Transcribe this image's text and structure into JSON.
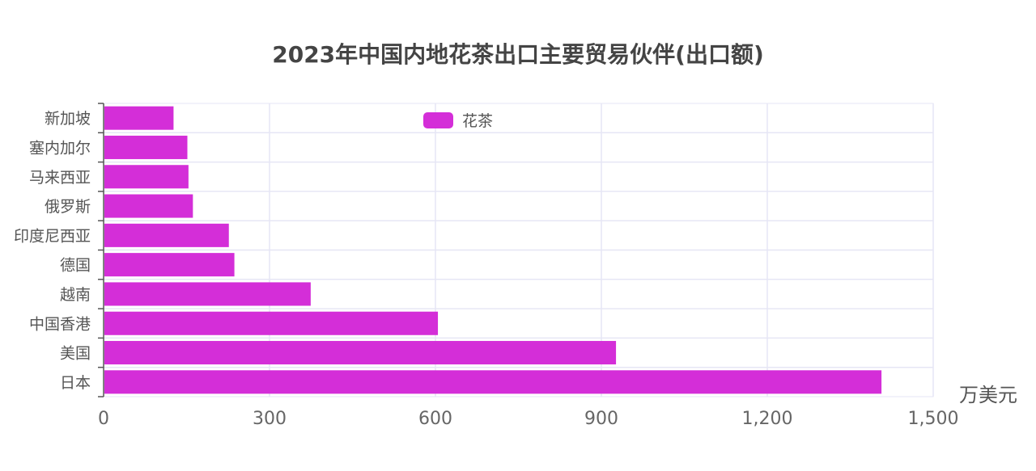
{
  "chart_data": {
    "type": "bar",
    "orientation": "horizontal",
    "title": "2023年中国内地花茶出口主要贸易伙伴(出口额)",
    "unit_label": "万美元",
    "categories": [
      "新加坡",
      "塞内加尔",
      "马来西亚",
      "俄罗斯",
      "印度尼西亚",
      "德国",
      "越南",
      "中国香港",
      "美国",
      "日本"
    ],
    "series": [
      {
        "name": "花茶",
        "values": [
          125,
          150,
          152,
          160,
          225,
          235,
          373,
          603,
          925,
          1405
        ]
      }
    ],
    "xlim": [
      0,
      1500
    ],
    "xticks": [
      0,
      300,
      600,
      900,
      1200,
      1500
    ],
    "xtick_labels": [
      "0",
      "300",
      "600",
      "900",
      "1,200",
      "1,500"
    ],
    "grid": true,
    "legend_position": "top-center",
    "colors": {
      "bar": "#d42ed8",
      "grid": "#e6e6f5",
      "axis": "#555555"
    }
  }
}
